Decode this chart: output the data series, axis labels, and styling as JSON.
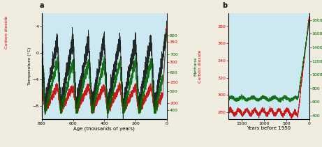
{
  "panel_a": {
    "bg_color": "#cce8f0",
    "outer_bg": "#f0ece0",
    "x_label": "Age (thousands of years)",
    "y_left_label": "Temperature (°C)",
    "xlim": [
      800,
      0
    ],
    "ylim_temp": [
      -10,
      6
    ],
    "ylim_co2": [
      160,
      420
    ],
    "ylim_ch4": [
      350,
      920
    ],
    "xticks": [
      800,
      600,
      400,
      200,
      0
    ],
    "yticks_left": [
      -8,
      -4,
      0,
      4
    ],
    "yticks_right_co2": [
      200,
      250,
      300,
      350
    ],
    "yticks_right_ch4": [
      400,
      500,
      600,
      700,
      800
    ],
    "label": "a",
    "co2_color": "#cc0000",
    "ch4_color": "#006600",
    "temp_color": "#111111"
  },
  "panel_b": {
    "bg_color": "#cce8f0",
    "outer_bg": "#f0ece0",
    "x_label": "Years before 1950",
    "xlim": [
      1800,
      0
    ],
    "ylim_co2": [
      272,
      395
    ],
    "ylim_ch4": [
      350,
      1900
    ],
    "xticks": [
      1500,
      1000,
      500,
      0
    ],
    "yticks_left": [
      280,
      300,
      320,
      340,
      360,
      380
    ],
    "yticks_right": [
      400,
      600,
      800,
      1000,
      1200,
      1400,
      1600,
      1800
    ],
    "label": "b",
    "co2_color": "#cc0000",
    "ch4_color": "#006600"
  }
}
